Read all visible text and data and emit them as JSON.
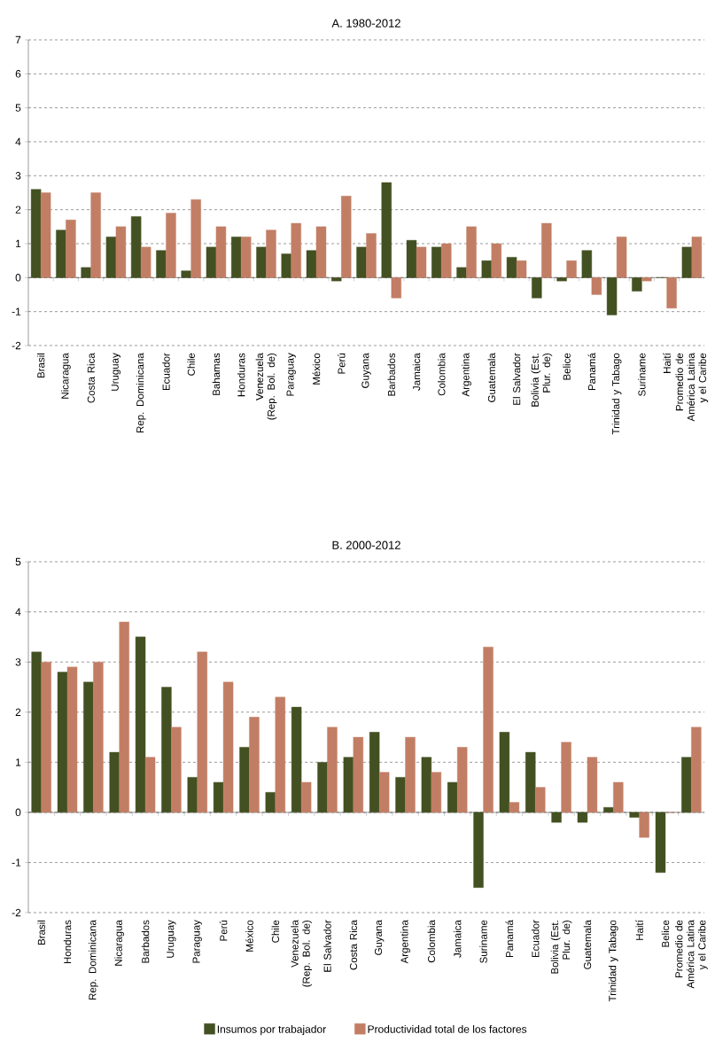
{
  "chart_data": [
    {
      "type": "bar",
      "title": "A. 1980-2012",
      "categories": [
        "Brasil",
        "Nicaragua",
        "Costa Rica",
        "Uruguay",
        "Rep. Dominicana",
        "Ecuador",
        "Chile",
        "Bahamas",
        "Honduras",
        "Venezuela (Rep. Bol. de)",
        "Paraguay",
        "México",
        "Perú",
        "Guyana",
        "Barbados",
        "Jamaica",
        "Colombia",
        "Argentina",
        "Guatemala",
        "El Salvador",
        "Bolivia (Est. Plur. de)",
        "Belice",
        "Panamá",
        "Trinidad y Tabago",
        "Suriname",
        "Haití",
        "Promedio de América Latina y el Caribe"
      ],
      "series": [
        {
          "color": "#435022",
          "values": [
            2.6,
            1.4,
            0.3,
            1.2,
            1.8,
            0.8,
            0.2,
            0.9,
            1.2,
            0.9,
            0.7,
            0.8,
            -0.1,
            0.9,
            2.8,
            1.1,
            0.9,
            0.3,
            0.5,
            0.6,
            -0.6,
            -0.1,
            0.8,
            -1.1,
            -0.4,
            0,
            0.9
          ]
        },
        {
          "color": "#c27e65",
          "values": [
            2.5,
            1.7,
            2.5,
            1.5,
            0.9,
            1.9,
            2.3,
            1.5,
            1.2,
            1.4,
            1.6,
            1.5,
            2.4,
            1.3,
            -0.6,
            0.9,
            1.0,
            1.5,
            1.0,
            0.5,
            1.6,
            0.5,
            -0.5,
            1.2,
            -0.1,
            -0.9,
            1.2
          ]
        }
      ],
      "ylim": [
        -2,
        7
      ],
      "yticks": [
        -2,
        -1,
        0,
        1,
        2,
        3,
        4,
        5,
        6,
        7
      ],
      "grid": "y"
    },
    {
      "type": "bar",
      "title": "B. 2000-2012",
      "categories": [
        "Brasil",
        "Honduras",
        "Rep. Dominicana",
        "Nicaragua",
        "Barbados",
        "Uruguay",
        "Paraguay",
        "Perú",
        "México",
        "Chile",
        "Venezuela (Rep. Bol. de)",
        "El Salvador",
        "Costa Rica",
        "Guyana",
        "Argentina",
        "Colombia",
        "Jamaica",
        "Suriname",
        "Panamá",
        "Ecuador",
        "Bolivia (Est. Plur. de)",
        "Guatemala",
        "Trinidad y Tabago",
        "Haití",
        "Belice",
        "Promedio de América Latina y el Caribe"
      ],
      "series": [
        {
          "name": "Insumos por trabajador",
          "color": "#435022",
          "values": [
            3.2,
            2.8,
            2.6,
            1.2,
            3.5,
            2.5,
            0.7,
            0.6,
            1.3,
            0.4,
            2.1,
            1.0,
            1.1,
            1.6,
            0.7,
            1.1,
            0.6,
            -1.5,
            1.6,
            1.2,
            -0.2,
            -0.2,
            0.1,
            -0.1,
            -1.2,
            1.1
          ]
        },
        {
          "name": "Productividad total de los factores",
          "color": "#c27e65",
          "values": [
            3.0,
            2.9,
            3.0,
            3.8,
            1.1,
            1.7,
            3.2,
            2.6,
            1.9,
            2.3,
            0.6,
            1.7,
            1.5,
            0.8,
            1.5,
            0.8,
            1.3,
            3.3,
            0.2,
            0.5,
            1.4,
            1.1,
            0.6,
            -0.5,
            0,
            1.7
          ]
        }
      ],
      "ylim": [
        -2,
        5
      ],
      "yticks": [
        -2,
        -1,
        0,
        1,
        2,
        3,
        4,
        5
      ],
      "grid": "y",
      "legend": "bottom"
    }
  ]
}
